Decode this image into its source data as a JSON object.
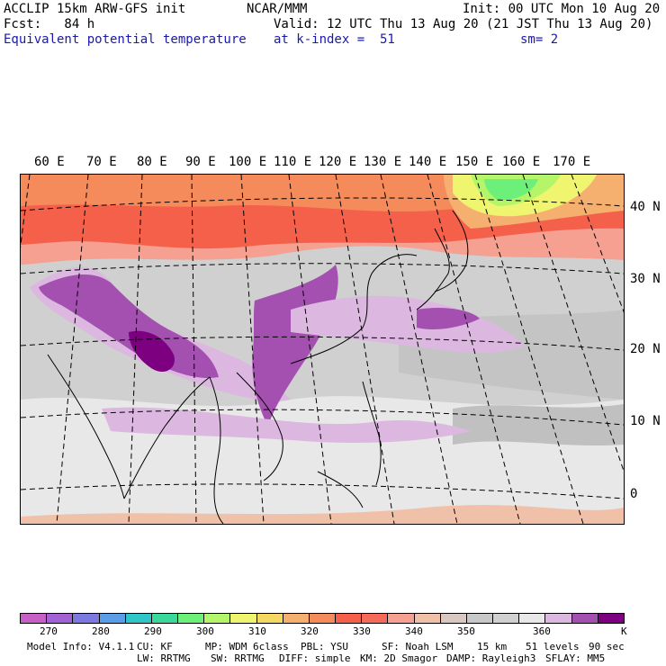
{
  "header": {
    "line1_left": "ACCLIP 15km ARW-GFS init",
    "line1_center": "NCAR/MMM",
    "line1_right": "Init: 00 UTC Mon 10 Aug 20",
    "line2_left": "Fcst:   84 h",
    "line2_right": "Valid: 12 UTC Thu 13 Aug 20 (21 JST Thu 13 Aug 20)",
    "field_name": "Equivalent potential temperature",
    "level": "at k-index =  51",
    "smoothing": "sm= 2"
  },
  "map": {
    "lon_labels": [
      "60 E",
      "70 E",
      "80 E",
      "90 E",
      "100 E",
      "110 E",
      "120 E",
      "130 E",
      "140 E",
      "150 E",
      "160 E",
      "170 E"
    ],
    "lat_labels": [
      "40 N",
      "30 N",
      "20 N",
      "10 N",
      "0"
    ]
  },
  "legend": {
    "colors": [
      "#c65fc6",
      "#a262d6",
      "#7c7ae0",
      "#5a9ee8",
      "#2ec6c6",
      "#3ad89a",
      "#6cf07a",
      "#b4f56a",
      "#f0f570",
      "#f5d862",
      "#f5b070",
      "#f58a5a",
      "#f5604a",
      "#f56a5a",
      "#f5a090",
      "#f0c0a8",
      "#d8c8c0",
      "#c8c8c8",
      "#d0d0d0",
      "#e8e8e8",
      "#dcb8e0",
      "#a450b0",
      "#7c0080"
    ],
    "tick_labels": [
      "270",
      "280",
      "290",
      "300",
      "310",
      "320",
      "330",
      "340",
      "350",
      "360"
    ],
    "unit": "K"
  },
  "footer": {
    "line1": [
      "Model Info: V4.1.1",
      "CU: KF",
      "MP: WDM 6class",
      "PBL: YSU",
      "SF: Noah LSM",
      "15 km",
      "51 levels",
      "90 sec"
    ],
    "line2": [
      "LW: RRTMG",
      "SW: RRTMG",
      "DIFF: simple",
      "KM: 2D Smagor",
      "DAMP: Rayleigh3",
      "SFLAY: MM5"
    ]
  }
}
